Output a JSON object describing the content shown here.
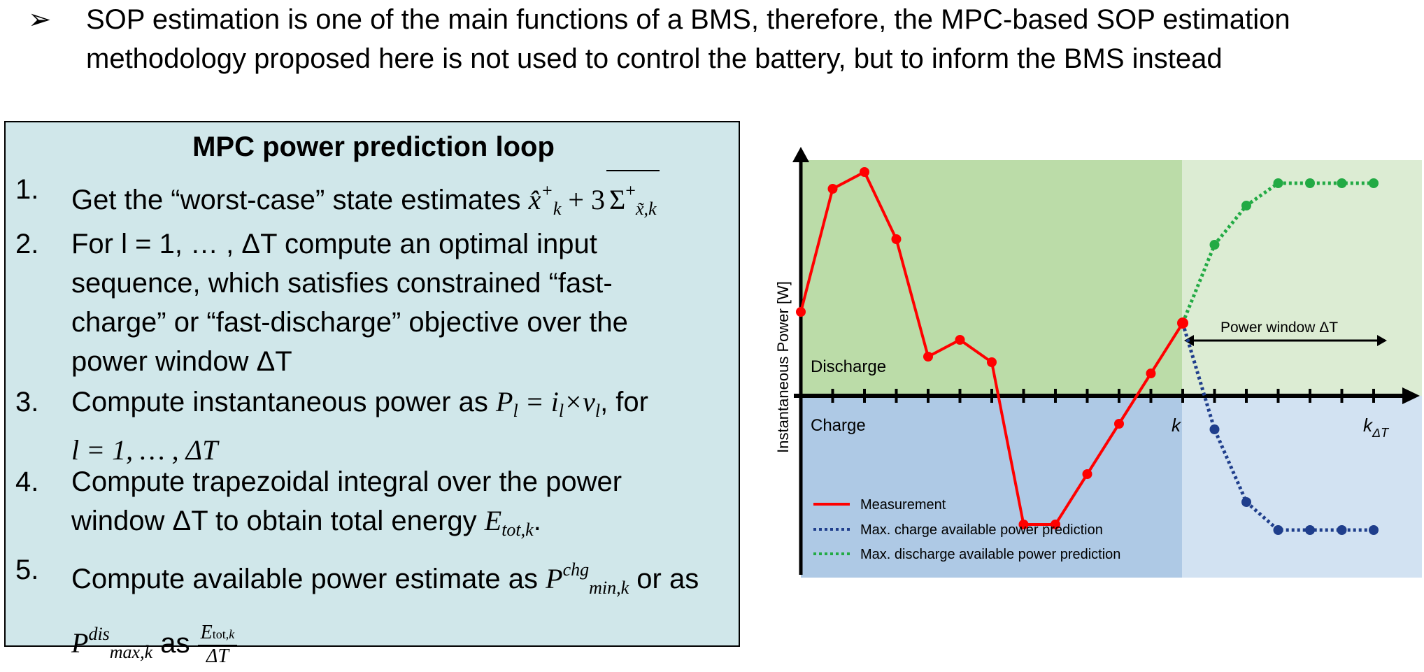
{
  "bullet": {
    "marker": "➢",
    "text": "SOP estimation is one of the main functions of a BMS, therefore, the MPC-based SOP estimation methodology proposed here is not used to control the battery, but to inform the BMS instead"
  },
  "box": {
    "title": "MPC power prediction loop",
    "steps": [
      {
        "num": "1.",
        "text_a": "Get the “worst-case” state estimates "
      },
      {
        "num": "2.",
        "lines": [
          "For l = 1, … , ΔT compute an optimal input",
          "sequence, which satisfies constrained “fast-",
          "charge” or “fast-discharge” objective over the",
          "power window ΔT"
        ]
      },
      {
        "num": "3.",
        "text_a": "Compute instantaneous power as ",
        "text_b": ", for",
        "line2": "l = 1, … , ΔT"
      },
      {
        "num": "4.",
        "line1": "Compute trapezoidal integral over the power",
        "line2_a": "window ΔT to obtain total energy "
      },
      {
        "num": "5.",
        "line1_a": "Compute available power estimate as ",
        "line1_b": " or as",
        "line2_b": " as "
      }
    ]
  },
  "chart_data": {
    "type": "line",
    "ylabel": "Instantaneous Power [W]",
    "region_labels": {
      "upper": "Discharge",
      "lower": "Charge"
    },
    "tick_labels": {
      "k": "k",
      "k_end": "k",
      "k_end_sub": "ΔT"
    },
    "window_label": "Power window ΔT",
    "series": [
      {
        "name": "Measurement",
        "color": "#ff0000",
        "style": "solid",
        "x": [
          0,
          1,
          2,
          3,
          4,
          5,
          6,
          7,
          8,
          9,
          10,
          11,
          12
        ],
        "y": [
          1.5,
          3.7,
          4.0,
          2.8,
          0.7,
          1.0,
          0.6,
          -2.3,
          -2.3,
          -1.4,
          -0.5,
          0.4,
          1.3
        ]
      },
      {
        "name": "Max. charge available power prediction",
        "color": "#1f3e8c",
        "style": "dotted",
        "x": [
          12,
          13,
          14,
          15,
          16,
          17,
          18
        ],
        "y": [
          1.3,
          -0.6,
          -1.9,
          -2.4,
          -2.4,
          -2.4,
          -2.4
        ]
      },
      {
        "name": "Max. discharge available power prediction",
        "color": "#22aa44",
        "style": "dotted",
        "x": [
          12,
          13,
          14,
          15,
          16,
          17,
          18
        ],
        "y": [
          1.3,
          2.7,
          3.4,
          3.8,
          3.8,
          3.8,
          3.8
        ]
      }
    ],
    "colors": {
      "discharge_region": "#bbdca8",
      "discharge_future": "#dcecd3",
      "charge_region": "#aec9e5",
      "charge_future": "#d2e2f2"
    }
  }
}
